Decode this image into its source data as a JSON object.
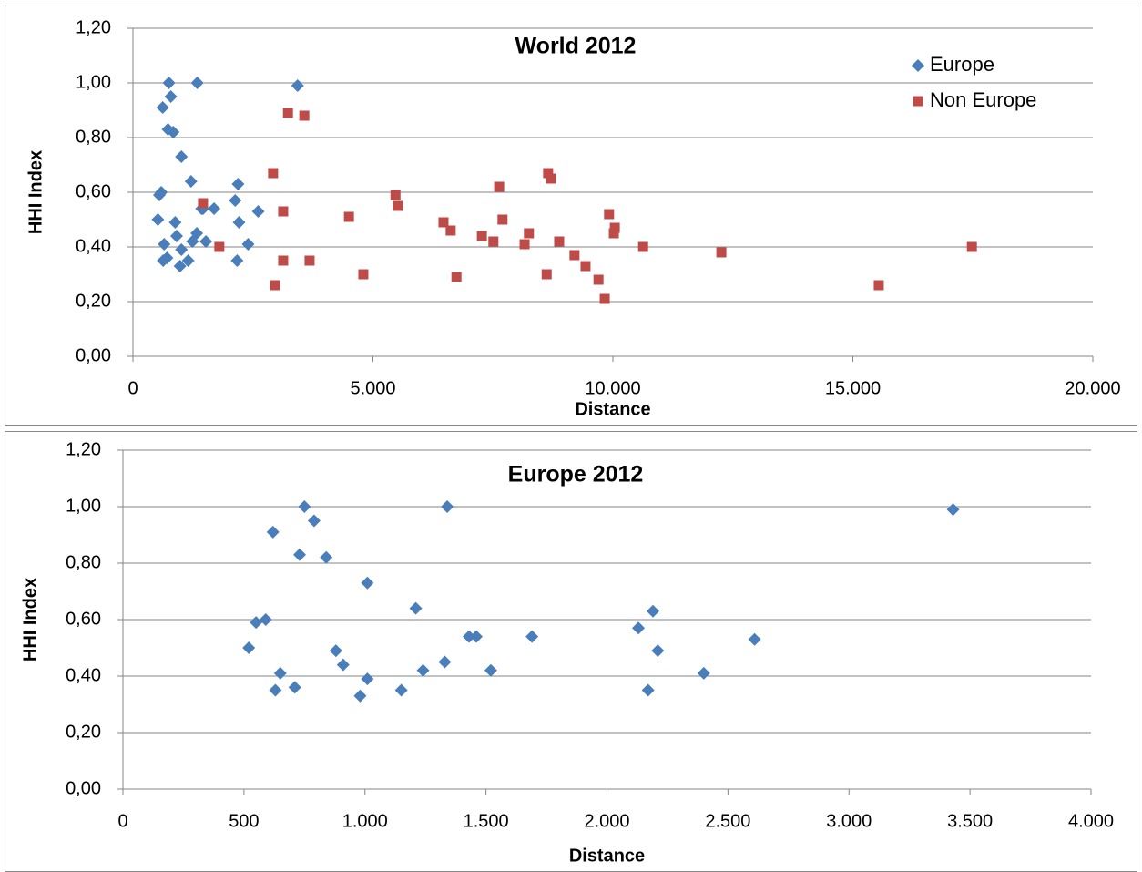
{
  "chart_data": [
    {
      "type": "scatter",
      "title": "World 2012",
      "xlabel": "Distance",
      "ylabel": "HHI Index",
      "xlim": [
        0,
        20000
      ],
      "xticks": [
        0,
        {
          "value": 5000,
          "label": "5.000"
        },
        {
          "value": 10000,
          "label": "10.000"
        },
        {
          "value": 15000,
          "label": "15.000"
        },
        {
          "value": 20000,
          "label": "20.000"
        }
      ],
      "ylim": [
        0,
        1.2
      ],
      "yticks": [
        {
          "value": 0,
          "label": "0,00"
        },
        {
          "value": 0.2,
          "label": "0,20"
        },
        {
          "value": 0.4,
          "label": "0,40"
        },
        {
          "value": 0.6,
          "label": "0,60"
        },
        {
          "value": 0.8,
          "label": "0,80"
        },
        {
          "value": 1.0,
          "label": "1,00"
        },
        {
          "value": 1.2,
          "label": "1,20"
        }
      ],
      "grid": true,
      "legend": "upper right",
      "series": [
        {
          "name": "Europe",
          "color": "#4a7ebb",
          "marker": "diamond",
          "x": [
            520,
            550,
            590,
            620,
            650,
            630,
            710,
            730,
            750,
            790,
            840,
            880,
            910,
            980,
            1010,
            1010,
            1150,
            1210,
            1240,
            1340,
            1330,
            1430,
            1460,
            1520,
            1690,
            2130,
            2170,
            2190,
            2210,
            2400,
            2610,
            3430
          ],
          "values": [
            0.5,
            0.59,
            0.6,
            0.91,
            0.41,
            0.35,
            0.36,
            0.83,
            1.0,
            0.95,
            0.82,
            0.49,
            0.44,
            0.33,
            0.39,
            0.73,
            0.35,
            0.64,
            0.42,
            1.0,
            0.45,
            0.54,
            0.54,
            0.42,
            0.54,
            0.57,
            0.35,
            0.63,
            0.49,
            0.41,
            0.53,
            0.99
          ]
        },
        {
          "name": "Non Europe",
          "color": "#be4b48",
          "marker": "square",
          "x": [
            1460,
            1800,
            2920,
            2960,
            3130,
            3130,
            3230,
            3570,
            3680,
            4500,
            4800,
            5470,
            5520,
            6470,
            6620,
            6740,
            7270,
            7510,
            7630,
            7700,
            8160,
            8250,
            8620,
            8650,
            8710,
            8880,
            9200,
            9430,
            9700,
            9830,
            9920,
            10040,
            10020,
            10630,
            12260,
            15540,
            17480
          ],
          "values": [
            0.56,
            0.4,
            0.67,
            0.26,
            0.35,
            0.53,
            0.89,
            0.88,
            0.35,
            0.51,
            0.3,
            0.59,
            0.55,
            0.49,
            0.46,
            0.29,
            0.44,
            0.42,
            0.62,
            0.5,
            0.41,
            0.45,
            0.3,
            0.67,
            0.65,
            0.42,
            0.37,
            0.33,
            0.28,
            0.21,
            0.52,
            0.47,
            0.45,
            0.4,
            0.38,
            0.26,
            0.4
          ]
        }
      ]
    },
    {
      "type": "scatter",
      "title": "Europe 2012",
      "xlabel": "Distance",
      "ylabel": "HHI Index",
      "xlim": [
        0,
        4000
      ],
      "xticks": [
        0,
        500,
        {
          "value": 1000,
          "label": "1.000"
        },
        {
          "value": 1500,
          "label": "1.500"
        },
        {
          "value": 2000,
          "label": "2.000"
        },
        {
          "value": 2500,
          "label": "2.500"
        },
        {
          "value": 3000,
          "label": "3.000"
        },
        {
          "value": 3500,
          "label": "3.500"
        },
        {
          "value": 4000,
          "label": "4.000"
        }
      ],
      "ylim": [
        0,
        1.2
      ],
      "yticks": [
        {
          "value": 0,
          "label": "0,00"
        },
        {
          "value": 0.2,
          "label": "0,20"
        },
        {
          "value": 0.4,
          "label": "0,40"
        },
        {
          "value": 0.6,
          "label": "0,60"
        },
        {
          "value": 0.8,
          "label": "0,80"
        },
        {
          "value": 1.0,
          "label": "1,00"
        },
        {
          "value": 1.2,
          "label": "1,20"
        }
      ],
      "grid": true,
      "series": [
        {
          "color": "#4a7ebb",
          "marker": "diamond",
          "x": [
            520,
            550,
            590,
            620,
            650,
            630,
            710,
            730,
            750,
            790,
            840,
            880,
            910,
            980,
            1010,
            1010,
            1150,
            1210,
            1240,
            1340,
            1330,
            1430,
            1460,
            1520,
            1690,
            2130,
            2170,
            2190,
            2210,
            2400,
            2610,
            3430
          ],
          "values": [
            0.5,
            0.59,
            0.6,
            0.91,
            0.41,
            0.35,
            0.36,
            0.83,
            1.0,
            0.95,
            0.82,
            0.49,
            0.44,
            0.33,
            0.39,
            0.73,
            0.35,
            0.64,
            0.42,
            1.0,
            0.45,
            0.54,
            0.54,
            0.42,
            0.54,
            0.57,
            0.35,
            0.63,
            0.49,
            0.41,
            0.53,
            0.99
          ]
        }
      ]
    }
  ]
}
